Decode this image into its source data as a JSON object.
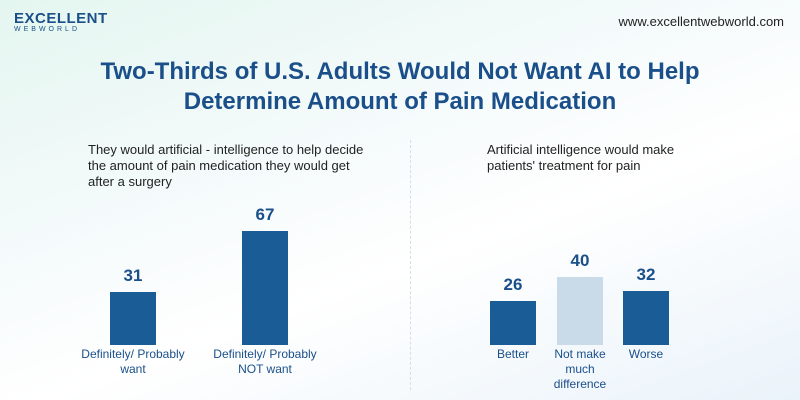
{
  "header": {
    "brand": "EXCELLENT",
    "brand_sub": "WEBWORLD",
    "url": "www.excellentwebworld.com",
    "title_lines": [
      "Two-Thirds of U.S. Adults Would Not Want AI to Help",
      "Determine Amount of Pain Medication"
    ]
  },
  "chart_data": [
    {
      "type": "bar",
      "subtitle": "They would artificial - intelligence to help decide the amount of pain medication they would get after a surgery",
      "categories": [
        "Definitely/ Probably want",
        "Definitely/ Probably NOT want"
      ],
      "values": [
        31,
        67
      ],
      "colors": [
        "#1a5c96",
        "#1a5c96"
      ]
    },
    {
      "type": "bar",
      "subtitle": "Artificial intelligence would make patients' treatment for pain",
      "categories": [
        "Better",
        "Not make much difference",
        "Worse"
      ],
      "values": [
        26,
        40,
        32
      ],
      "colors": [
        "#1a5c96",
        "#c9dbe8",
        "#1a5c96"
      ]
    }
  ]
}
